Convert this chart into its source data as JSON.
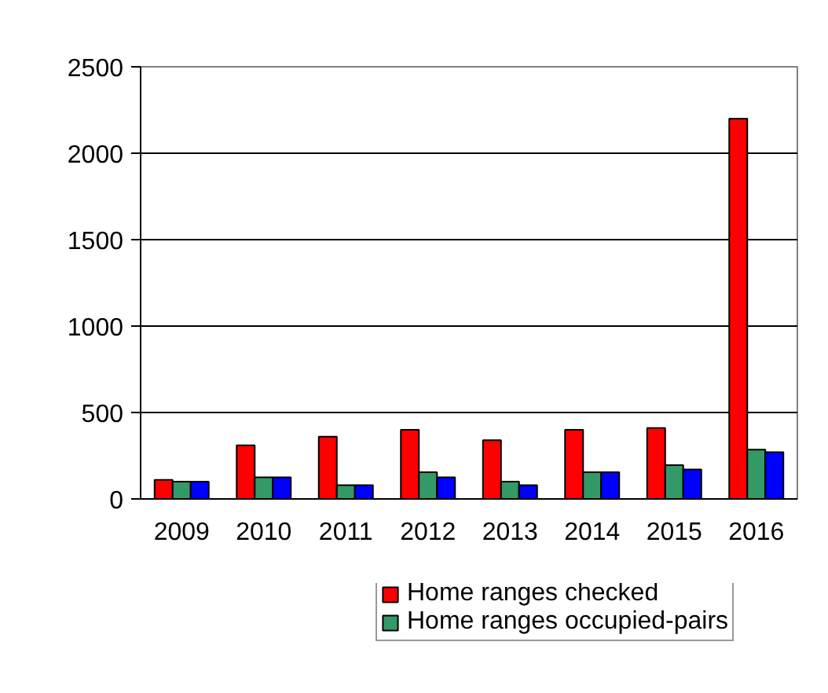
{
  "chart_data": {
    "type": "bar",
    "categories": [
      "2009",
      "2010",
      "2011",
      "2012",
      "2013",
      "2014",
      "2015",
      "2016"
    ],
    "series": [
      {
        "name": "Home ranges checked",
        "color": "#ff0000",
        "values": [
          110,
          310,
          360,
          400,
          340,
          400,
          410,
          2200
        ]
      },
      {
        "name": "Home ranges occupied-pairs",
        "color": "#339966",
        "values": [
          100,
          125,
          80,
          155,
          100,
          155,
          195,
          285
        ]
      },
      {
        "color": "#0000ff",
        "values": [
          100,
          125,
          80,
          125,
          80,
          155,
          170,
          270
        ]
      }
    ],
    "ylim": [
      0,
      2500
    ],
    "yticks": [
      0,
      500,
      1000,
      1500,
      2000,
      2500
    ],
    "grid": "y",
    "legend": "bottom"
  }
}
